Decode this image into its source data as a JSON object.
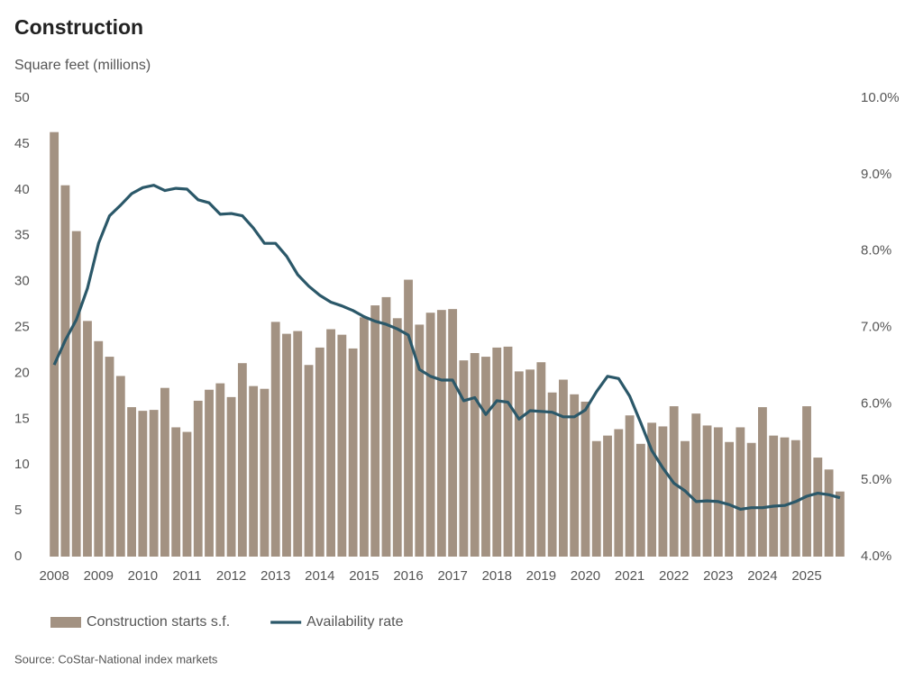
{
  "chart_data": {
    "type": "bar_line",
    "title": "Construction",
    "y_label": "Square feet (millions)",
    "source": "Source: CoStar-National index markets",
    "categories": [
      "2008",
      null,
      null,
      null,
      "2009",
      null,
      null,
      null,
      "2010",
      null,
      null,
      null,
      "2011",
      null,
      null,
      null,
      "2012",
      null,
      null,
      null,
      "2013",
      null,
      null,
      null,
      "2014",
      null,
      null,
      null,
      "2015",
      null,
      null,
      null,
      "2016",
      null,
      null,
      null,
      "2017",
      null,
      null,
      null,
      "2018",
      null,
      null,
      null,
      "2019",
      null,
      null,
      null,
      "2020",
      null,
      null,
      null,
      "2021",
      null,
      null,
      null,
      "2022",
      null,
      null,
      null,
      "2023",
      null,
      null,
      null,
      "2024",
      null,
      null,
      null,
      "2025",
      null,
      null,
      null
    ],
    "series": [
      {
        "name": "Construction starts s.f.",
        "color": "#a39282",
        "kind": "bar",
        "values": [
          46.3,
          40.5,
          35.5,
          25.7,
          23.5,
          21.8,
          19.7,
          16.3,
          15.9,
          16.0,
          18.4,
          14.1,
          13.6,
          17.0,
          18.2,
          18.9,
          17.4,
          21.1,
          18.6,
          18.3,
          25.6,
          24.3,
          24.6,
          20.9,
          22.8,
          24.8,
          24.2,
          22.7,
          26.1,
          27.4,
          28.3,
          26.0,
          30.2,
          25.3,
          26.6,
          26.9,
          27.0,
          21.4,
          22.2,
          21.8,
          22.8,
          22.9,
          20.2,
          20.4,
          21.2,
          17.9,
          19.3,
          17.7,
          16.9,
          12.6,
          13.2,
          13.9,
          15.4,
          12.3,
          14.6,
          14.2,
          16.4,
          12.6,
          15.6,
          14.3,
          14.1,
          12.5,
          14.1,
          12.4,
          16.3,
          13.2,
          13.0,
          12.7,
          16.4,
          10.8,
          9.5,
          7.1
        ]
      },
      {
        "name": "Availability rate",
        "color": "#2b5869",
        "kind": "line",
        "axis": "y2",
        "values": [
          6.51,
          6.83,
          7.1,
          7.51,
          8.1,
          8.46,
          8.6,
          8.75,
          8.83,
          8.86,
          8.79,
          8.82,
          8.81,
          8.67,
          8.63,
          8.48,
          8.49,
          8.46,
          8.3,
          8.1,
          8.1,
          7.93,
          7.69,
          7.54,
          7.42,
          7.33,
          7.28,
          7.22,
          7.14,
          7.08,
          7.04,
          6.98,
          6.9,
          6.45,
          6.36,
          6.31,
          6.31,
          6.04,
          6.08,
          5.86,
          6.04,
          6.02,
          5.8,
          5.91,
          5.9,
          5.89,
          5.83,
          5.83,
          5.92,
          6.16,
          6.36,
          6.33,
          6.1,
          5.75,
          5.39,
          5.16,
          4.96,
          4.86,
          4.72,
          4.73,
          4.72,
          4.68,
          4.62,
          4.64,
          4.64,
          4.66,
          4.67,
          4.72,
          4.79,
          4.83,
          4.81,
          4.77
        ]
      }
    ],
    "ylim": [
      0,
      50
    ],
    "yticks": [
      0,
      5,
      10,
      15,
      20,
      25,
      30,
      35,
      40,
      45,
      50
    ],
    "y2lim": [
      4,
      10
    ],
    "y2ticks": [
      {
        "value": 4,
        "label": "4.0%"
      },
      {
        "value": 5,
        "label": "5.0%"
      },
      {
        "value": 6,
        "label": "6.0%"
      },
      {
        "value": 7,
        "label": "7.0%"
      },
      {
        "value": 8,
        "label": "8.0%"
      },
      {
        "value": 9,
        "label": "9.0%"
      },
      {
        "value": 10,
        "label": "10.0%"
      }
    ],
    "grid": false,
    "legend": "bottom"
  }
}
